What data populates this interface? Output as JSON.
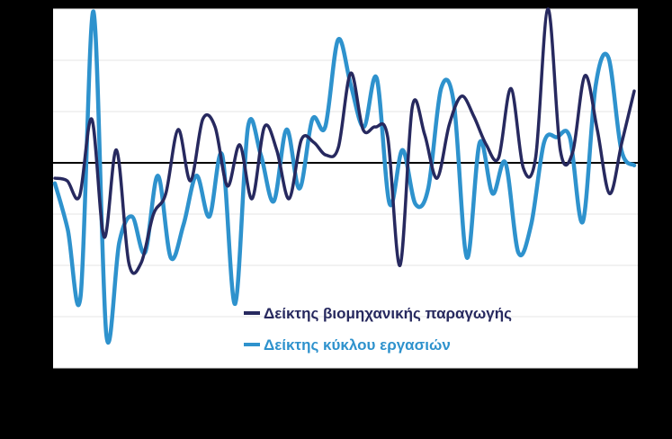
{
  "chart_data": {
    "type": "line",
    "title": "",
    "xlabel": "",
    "ylabel": "",
    "ylim": [
      -4,
      3
    ],
    "grid": true,
    "zero_line": true,
    "legend_position": "inside-lower-center",
    "series": [
      {
        "name": "Δείκτης βιομηχανικής παραγωγής",
        "color": "#27295f",
        "values": [
          -0.3,
          -0.35,
          -0.65,
          0.85,
          -1.45,
          0.25,
          -1.95,
          -1.95,
          -1.0,
          -0.6,
          0.65,
          -0.35,
          0.85,
          0.7,
          -0.45,
          0.35,
          -0.7,
          0.7,
          0.25,
          -0.7,
          0.45,
          0.4,
          0.15,
          0.3,
          1.75,
          0.65,
          0.7,
          0.5,
          -2.0,
          1.1,
          0.55,
          -0.3,
          0.75,
          1.3,
          0.9,
          0.35,
          0.1,
          1.45,
          -0.1,
          0.1,
          3.0,
          0.25,
          0.2,
          1.7,
          0.65,
          -0.6,
          0.4,
          1.4
        ]
      },
      {
        "name": "Δείκτης κύκλου εργασιών",
        "color": "#2e92cd",
        "values": [
          -0.4,
          -1.3,
          -2.6,
          2.95,
          -3.35,
          -1.55,
          -1.05,
          -1.75,
          -0.25,
          -1.85,
          -1.2,
          -0.25,
          -1.05,
          0.15,
          -2.75,
          0.7,
          0.15,
          -0.75,
          0.65,
          -0.5,
          0.85,
          0.7,
          2.4,
          1.5,
          0.7,
          1.65,
          -0.8,
          0.25,
          -0.8,
          -0.5,
          1.45,
          1.15,
          -1.85,
          0.4,
          -0.6,
          0.0,
          -1.75,
          -1.2,
          0.4,
          0.5,
          0.5,
          -1.15,
          1.5,
          2.05,
          0.25,
          -0.05
        ]
      }
    ]
  }
}
